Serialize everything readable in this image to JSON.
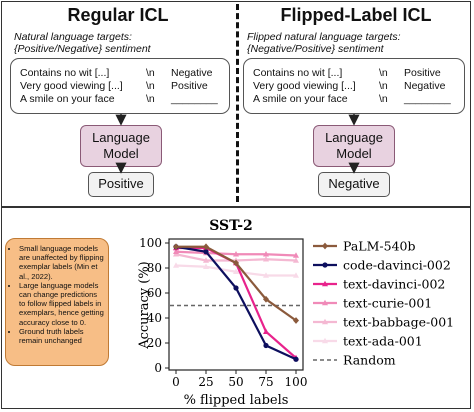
{
  "left_panel": {
    "title": "Regular ICL",
    "subtitle_line1": "Natural language targets:",
    "subtitle_line2": "{Positive/Negative} sentiment",
    "rows": [
      {
        "input": "Contains no wit [...]",
        "sep": "\\n",
        "label": "Negative"
      },
      {
        "input": "Very good viewing [...]",
        "sep": "\\n",
        "label": "Positive"
      },
      {
        "input": "A smile on your face",
        "sep": "\\n",
        "label": "________"
      }
    ],
    "model_line1": "Language",
    "model_line2": "Model",
    "output": "Positive"
  },
  "right_panel": {
    "title": "Flipped-Label ICL",
    "subtitle_line1": "Flipped natural language targets:",
    "subtitle_line2": "{Negative/Positive} sentiment",
    "rows": [
      {
        "input": "Contains no wit [...]",
        "sep": "\\n",
        "label": "Positive"
      },
      {
        "input": "Very good viewing [...]",
        "sep": "\\n",
        "label": "Negative"
      },
      {
        "input": "A smile on your face",
        "sep": "\\n",
        "label": "________"
      }
    ],
    "model_line1": "Language",
    "model_line2": "Model",
    "output": "Negative"
  },
  "note": {
    "bullets": [
      "Small language models are unaffected by flipping exemplar labels (Min et al., 2022).",
      "Large language models can change predictions to follow flipped labels in exemplars, hence getting accuracy close to 0.",
      "Ground truth labels remain unchanged"
    ],
    "color": "#f7be86"
  },
  "chart_data": {
    "type": "line",
    "title": "SST-2",
    "xlabel": "% flipped labels",
    "ylabel": "Accuracy (%)",
    "x": [
      0,
      25,
      50,
      75,
      100
    ],
    "xticks": [
      "0",
      "25",
      "50",
      "75",
      "100"
    ],
    "yticks": [
      "0",
      "20",
      "40",
      "60",
      "80",
      "100"
    ],
    "xlim": [
      0,
      100
    ],
    "ylim": [
      0,
      100
    ],
    "grid": false,
    "legend_position": "right",
    "series": [
      {
        "name": "PaLM-540b",
        "color": "#8b5a3c",
        "marker": "diamond",
        "values": [
          97,
          97,
          84,
          55,
          38
        ]
      },
      {
        "name": "code-davinci-002",
        "color": "#0d0f5e",
        "marker": "circle",
        "values": [
          97,
          93,
          64,
          18,
          7
        ]
      },
      {
        "name": "text-davinci-002",
        "color": "#e8238c",
        "marker": "triangle",
        "values": [
          96,
          96,
          84,
          29,
          8
        ]
      },
      {
        "name": "text-curie-001",
        "color": "#f08ab8",
        "marker": "triangle",
        "values": [
          93,
          92,
          91,
          91,
          90
        ]
      },
      {
        "name": "text-babbage-001",
        "color": "#f4b8d2",
        "marker": "triangle",
        "values": [
          91,
          86,
          86,
          87,
          86
        ]
      },
      {
        "name": "text-ada-001",
        "color": "#f8dae8",
        "marker": "triangle",
        "values": [
          82,
          81,
          77,
          74,
          74
        ]
      }
    ],
    "random": {
      "name": "Random",
      "value": 50,
      "color": "#666666"
    }
  }
}
